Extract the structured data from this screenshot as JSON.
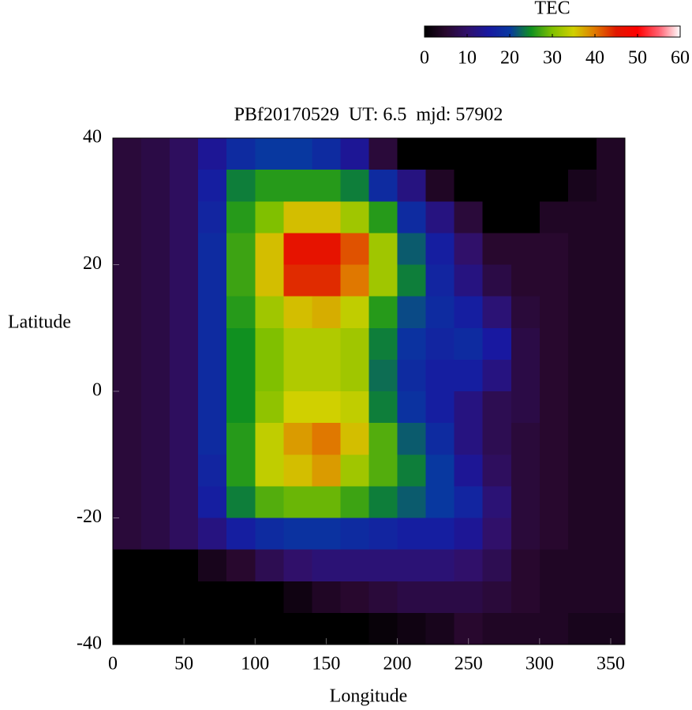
{
  "chart_data": {
    "type": "heatmap",
    "title": "PBf20170529  UT: 6.5  mjd: 57902",
    "x_label": "Longitude",
    "y_label": "Latitude",
    "colorbar_label": "TEC",
    "x": [
      10,
      30,
      50,
      70,
      90,
      110,
      130,
      150,
      170,
      190,
      210,
      230,
      250,
      270,
      290,
      310,
      330,
      350
    ],
    "y": [
      37.5,
      32.5,
      27.5,
      22.5,
      17.5,
      12.5,
      7.5,
      2.5,
      -2.5,
      -7.5,
      -12.5,
      -17.5,
      -22.5,
      -27.5,
      -32.5,
      -37.5
    ],
    "z": [
      [
        6,
        7,
        9,
        14,
        18,
        20,
        20,
        18,
        14,
        6,
        0,
        0,
        0,
        0,
        0,
        0,
        0,
        4
      ],
      [
        6,
        7,
        9,
        16,
        24,
        26,
        26,
        26,
        24,
        18,
        12,
        4,
        0,
        0,
        0,
        0,
        3,
        4
      ],
      [
        6,
        7,
        9,
        17,
        26,
        30,
        36,
        36,
        32,
        26,
        18,
        12,
        6,
        0,
        0,
        4,
        4,
        4
      ],
      [
        6,
        7,
        9,
        18,
        27,
        36,
        46,
        46,
        42,
        32,
        22,
        16,
        10,
        5,
        5,
        5,
        4,
        4
      ],
      [
        6,
        7,
        9,
        18,
        27,
        36,
        44,
        44,
        40,
        32,
        24,
        17,
        12,
        7,
        5,
        5,
        4,
        4
      ],
      [
        6,
        7,
        9,
        18,
        26,
        32,
        36,
        37,
        34,
        26,
        21,
        18,
        16,
        11,
        6,
        5,
        4,
        4
      ],
      [
        6,
        7,
        9,
        18,
        25,
        30,
        33,
        33,
        32,
        24,
        19,
        17,
        18,
        15,
        7,
        5,
        4,
        4
      ],
      [
        6,
        7,
        9,
        18,
        25,
        30,
        33,
        33,
        32,
        23,
        18,
        16,
        16,
        12,
        7,
        5,
        4,
        4
      ],
      [
        6,
        7,
        9,
        18,
        25,
        31,
        35,
        35,
        34,
        24,
        19,
        16,
        12,
        8,
        7,
        5,
        4,
        4
      ],
      [
        6,
        7,
        9,
        18,
        26,
        34,
        38,
        40,
        36,
        28,
        22,
        18,
        12,
        8,
        6,
        5,
        4,
        4
      ],
      [
        6,
        7,
        9,
        17,
        26,
        34,
        36,
        38,
        32,
        28,
        24,
        20,
        14,
        9,
        6,
        5,
        4,
        4
      ],
      [
        6,
        7,
        9,
        16,
        24,
        28,
        29,
        29,
        27,
        24,
        22,
        20,
        17,
        11,
        6,
        5,
        4,
        4
      ],
      [
        6,
        7,
        9,
        12,
        16,
        18,
        19,
        19,
        18,
        17,
        16,
        16,
        14,
        10,
        6,
        5,
        4,
        4
      ],
      [
        0,
        0,
        0,
        3,
        5,
        8,
        10,
        11,
        11,
        11,
        11,
        11,
        10,
        8,
        5,
        4,
        4,
        4
      ],
      [
        0,
        0,
        0,
        0,
        0,
        0,
        2,
        4,
        5,
        6,
        7,
        7,
        7,
        6,
        5,
        4,
        4,
        4
      ],
      [
        0,
        0,
        0,
        0,
        0,
        0,
        0,
        0,
        0,
        1,
        2,
        3,
        5,
        4,
        4,
        4,
        3,
        3
      ]
    ],
    "xlim": [
      0,
      360
    ],
    "xticks": [
      0,
      50,
      100,
      150,
      200,
      250,
      300,
      350
    ],
    "ylim": [
      -40,
      40
    ],
    "yticks": [
      -40,
      -20,
      0,
      20,
      40
    ],
    "zlim": [
      0,
      60
    ],
    "zticks": [
      0,
      10,
      20,
      30,
      40,
      50,
      60
    ],
    "colorscale": [
      [
        0,
        "#000000"
      ],
      [
        5,
        "#28082e"
      ],
      [
        10,
        "#30106a"
      ],
      [
        15,
        "#1818a0"
      ],
      [
        20,
        "#0838a0"
      ],
      [
        25,
        "#109020"
      ],
      [
        30,
        "#80c000"
      ],
      [
        35,
        "#d0d000"
      ],
      [
        40,
        "#e07800"
      ],
      [
        45,
        "#e01800"
      ],
      [
        50,
        "#ff0000"
      ],
      [
        55,
        "#ff6070"
      ],
      [
        60,
        "#ffffff"
      ]
    ]
  }
}
